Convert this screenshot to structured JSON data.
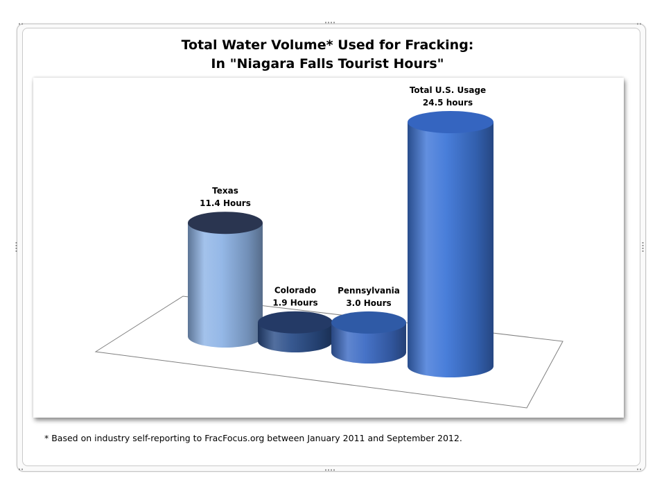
{
  "title_lines": [
    "Total Water Volume* Used for Fracking:",
    "In \"Niagara Falls Tourist Hours\""
  ],
  "footnote": "* Based on industry self-reporting to FracFocus.org between January 2011 and September 2012.",
  "chart_data": {
    "type": "bar",
    "style": "3d-cylinder",
    "title": "Total Water Volume* Used for Fracking: In \"Niagara Falls Tourist Hours\"",
    "categories": [
      "Texas",
      "Colorado",
      "Pennsylvania",
      "Total U.S. Usage"
    ],
    "values": [
      11.4,
      1.9,
      3.0,
      24.5
    ],
    "data_labels": [
      [
        "Texas",
        "11.4 Hours"
      ],
      [
        "Colorado",
        "1.9 Hours"
      ],
      [
        "Pennsylvania",
        "3.0 Hours"
      ],
      [
        "Total U.S. Usage",
        "24.5  hours"
      ]
    ],
    "colors": [
      "#8fb4e6",
      "#2c4f8a",
      "#3d6cc4",
      "#3f77d8"
    ],
    "top_colors": [
      "#2a3550",
      "#243a66",
      "#2f5aa6",
      "#3565c0"
    ],
    "legend": "none",
    "grid": false
  }
}
